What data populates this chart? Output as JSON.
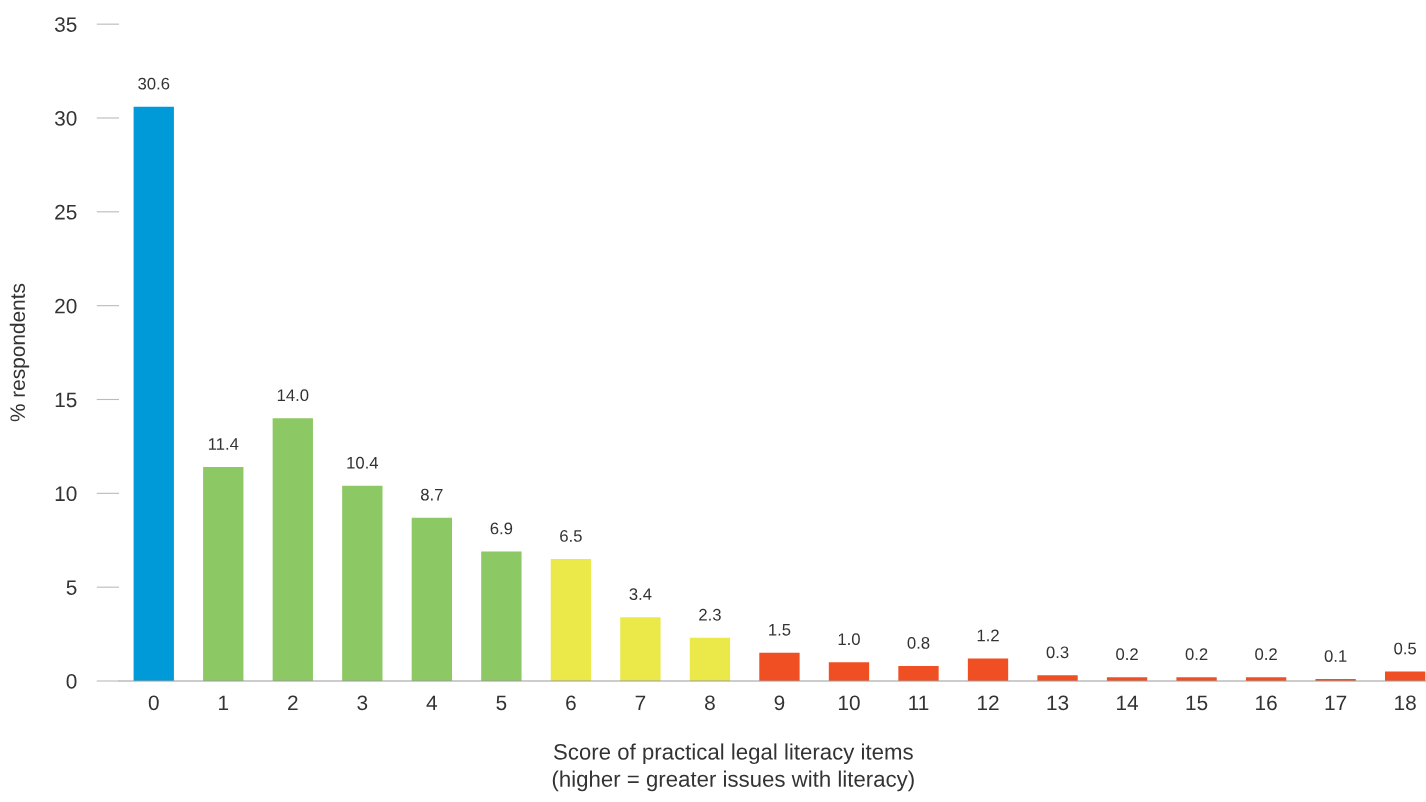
{
  "chart_data": {
    "type": "bar",
    "ylabel": "% respondents",
    "xlabel": "Score of practical legal literacy items\n(higher = greater issues with literacy)",
    "categories": [
      "0",
      "1",
      "2",
      "3",
      "4",
      "5",
      "6",
      "7",
      "8",
      "9",
      "10",
      "11",
      "12",
      "13",
      "14",
      "15",
      "16",
      "17",
      "18"
    ],
    "values": [
      30.6,
      11.4,
      14.0,
      10.4,
      8.7,
      6.9,
      6.5,
      3.4,
      2.3,
      1.5,
      1.0,
      0.8,
      1.2,
      0.3,
      0.2,
      0.2,
      0.2,
      0.1,
      0.5
    ],
    "colors": [
      "#009ad9",
      "#8cc864",
      "#8cc864",
      "#8cc864",
      "#8cc864",
      "#8cc864",
      "#ebe84a",
      "#ebe84a",
      "#ebe84a",
      "#f04e23",
      "#f04e23",
      "#f04e23",
      "#f04e23",
      "#f04e23",
      "#f04e23",
      "#f04e23",
      "#f04e23",
      "#f04e23",
      "#f04e23"
    ],
    "value_labels": [
      "30.6",
      "11.4",
      "14.0",
      "10.4",
      "8.7",
      "6.9",
      "6.5",
      "3.4",
      "2.3",
      "1.5",
      "1.0",
      "0.8",
      "1.2",
      "0.3",
      "0.2",
      "0.2",
      "0.2",
      "0.1",
      "0.5"
    ],
    "ylim": [
      0,
      35
    ],
    "yticks": [
      0,
      5,
      10,
      15,
      20,
      25,
      30,
      35
    ],
    "grid": false
  }
}
